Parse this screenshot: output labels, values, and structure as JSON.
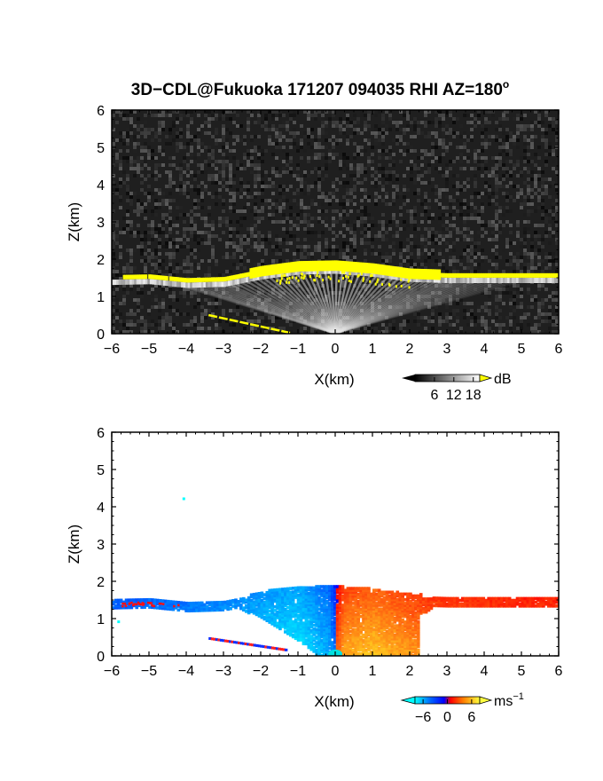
{
  "figure": {
    "title": "3D−CDL@Fukuoka 171207 094035 RHI AZ=180",
    "title_superscript": "o"
  },
  "colors": {
    "background": "#ffffff",
    "reflectivity_bg": "#1f1f1f",
    "cloud_base": "#ffff00",
    "velocity_negative": [
      "#00ffff",
      "#0050ff",
      "#0000ff"
    ],
    "velocity_positive": [
      "#ff2000",
      "#ff8000",
      "#ffff30"
    ]
  },
  "chart_data": [
    {
      "type": "heatmap",
      "name": "reflectivity",
      "xlabel": "X(km)",
      "ylabel": "Z(km)",
      "xlim": [
        -6,
        6
      ],
      "ylim": [
        0,
        6
      ],
      "xticks": [
        "−6",
        "−5",
        "−4",
        "−3",
        "−2",
        "−1",
        "0",
        "1",
        "2",
        "3",
        "4",
        "5",
        "6"
      ],
      "yticks": [
        "0",
        "1",
        "2",
        "3",
        "4",
        "5",
        "6"
      ],
      "colorbar": {
        "unit": "dB",
        "ticks": [
          "6",
          "12",
          "18"
        ],
        "range": [
          0,
          20
        ]
      },
      "cloud_layer_height_km": {
        "x": [
          -6,
          -5,
          -4,
          -3,
          -2,
          -1,
          0,
          1,
          2,
          3,
          4,
          5,
          6
        ],
        "y": [
          1.5,
          1.52,
          1.42,
          1.45,
          1.65,
          1.78,
          1.8,
          1.72,
          1.58,
          1.55,
          1.55,
          1.55,
          1.55
        ]
      },
      "ground_echo_line": {
        "x": [
          -3.4,
          -1.2
        ],
        "y": [
          0.5,
          0.02
        ]
      }
    },
    {
      "type": "heatmap",
      "name": "doppler_velocity",
      "xlabel": "X(km)",
      "ylabel": "Z(km)",
      "xlim": [
        -6,
        6
      ],
      "ylim": [
        0,
        6
      ],
      "xticks": [
        "−6",
        "−5",
        "−4",
        "−3",
        "−2",
        "−1",
        "0",
        "1",
        "2",
        "3",
        "4",
        "5",
        "6"
      ],
      "yticks": [
        "0",
        "1",
        "2",
        "3",
        "4",
        "5",
        "6"
      ],
      "colorbar": {
        "unit": "ms",
        "unit_superscript": "−1",
        "ticks": [
          "−6",
          "0",
          "6"
        ],
        "range": [
          -8,
          8
        ]
      },
      "velocity_ms": {
        "x": [
          -6,
          -5,
          -4,
          -3,
          -2,
          -1,
          -0.2,
          0.2,
          1,
          2,
          3,
          4,
          5,
          6
        ],
        "v": [
          -2.5,
          -3,
          -3.5,
          -4,
          -4.5,
          -5,
          -3,
          2,
          3,
          2,
          1.5,
          1.2,
          1.0,
          1.0
        ]
      }
    }
  ]
}
